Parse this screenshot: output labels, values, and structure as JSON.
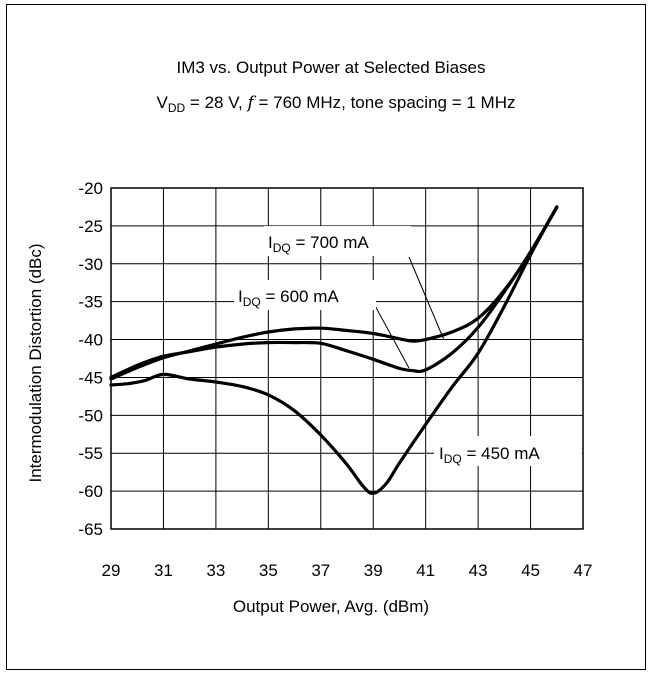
{
  "chart_data": {
    "type": "line",
    "title_line1": "IM3 vs. Output Power at Selected Biases",
    "title_line2": {
      "vdd_main": "V",
      "vdd_sub": "DD",
      "vdd_rest": " = 28 V, ",
      "f_symbol": "f",
      "f_rest": " = 760 MHz, tone spacing = 1 MHz"
    },
    "xlabel": "Output Power, Avg. (dBm)",
    "ylabel": "Intermodulation Distortion (dBc)",
    "xlim": [
      29,
      47
    ],
    "ylim": [
      -65,
      -20
    ],
    "xticks": [
      29,
      31,
      33,
      35,
      37,
      39,
      41,
      43,
      45,
      47
    ],
    "yticks": [
      -20,
      -25,
      -30,
      -35,
      -40,
      -45,
      -50,
      -55,
      -60,
      -65
    ],
    "grid": true,
    "series": [
      {
        "name_main": "I",
        "name_sub": "DQ",
        "name_rest": " = 700 mA",
        "x": [
          29,
          30,
          31,
          32,
          33,
          34,
          35,
          36,
          37,
          38,
          39,
          40,
          40.5,
          41,
          42,
          43,
          44,
          45,
          46
        ],
        "y": [
          -45.2,
          -43.7,
          -42.4,
          -41.5,
          -40.6,
          -39.7,
          -39.0,
          -38.6,
          -38.5,
          -38.8,
          -39.2,
          -39.9,
          -40.2,
          -40.0,
          -39.0,
          -37.2,
          -33.5,
          -28.5,
          -22.5
        ]
      },
      {
        "name_main": "I",
        "name_sub": "DQ",
        "name_rest": " = 600 mA",
        "x": [
          29,
          30,
          31,
          32,
          33,
          34,
          35,
          36,
          37,
          38,
          39,
          40,
          40.5,
          41,
          42,
          43,
          44,
          45,
          46
        ],
        "y": [
          -45.0,
          -43.4,
          -42.2,
          -41.6,
          -41.0,
          -40.6,
          -40.4,
          -40.4,
          -40.5,
          -41.5,
          -42.6,
          -43.8,
          -44.1,
          -44.0,
          -41.8,
          -38.4,
          -33.7,
          -28.4,
          -22.6
        ]
      },
      {
        "name_main": "I",
        "name_sub": "DQ",
        "name_rest": " = 450 mA",
        "x": [
          29,
          29.7,
          30.3,
          31,
          32,
          33,
          34,
          35,
          36,
          37,
          38,
          38.6,
          39,
          39.5,
          40,
          41,
          42,
          43,
          44,
          45,
          46
        ],
        "y": [
          -46.0,
          -45.8,
          -45.4,
          -44.6,
          -45.2,
          -45.6,
          -46.2,
          -47.3,
          -49.4,
          -52.6,
          -56.5,
          -59.3,
          -60.3,
          -59.0,
          -56.3,
          -51.2,
          -46.3,
          -41.8,
          -35.6,
          -28.8,
          -22.5
        ]
      }
    ]
  }
}
